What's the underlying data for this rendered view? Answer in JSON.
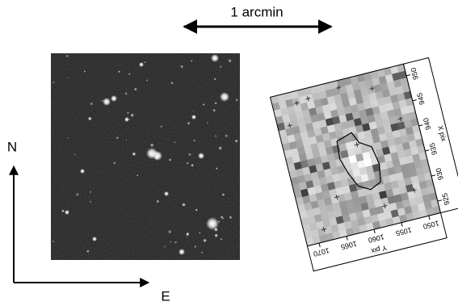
{
  "scale_bar": {
    "label": "1 arcmin"
  },
  "compass": {
    "north": "N",
    "east": "E"
  },
  "panel": {
    "x_axis": {
      "label": "X pix",
      "ticks": [
        950,
        945,
        940,
        935,
        930,
        925
      ]
    },
    "y_axis": {
      "label": "Y pix",
      "ticks": [
        1070,
        1065,
        1060,
        1055,
        1050
      ]
    }
  }
}
